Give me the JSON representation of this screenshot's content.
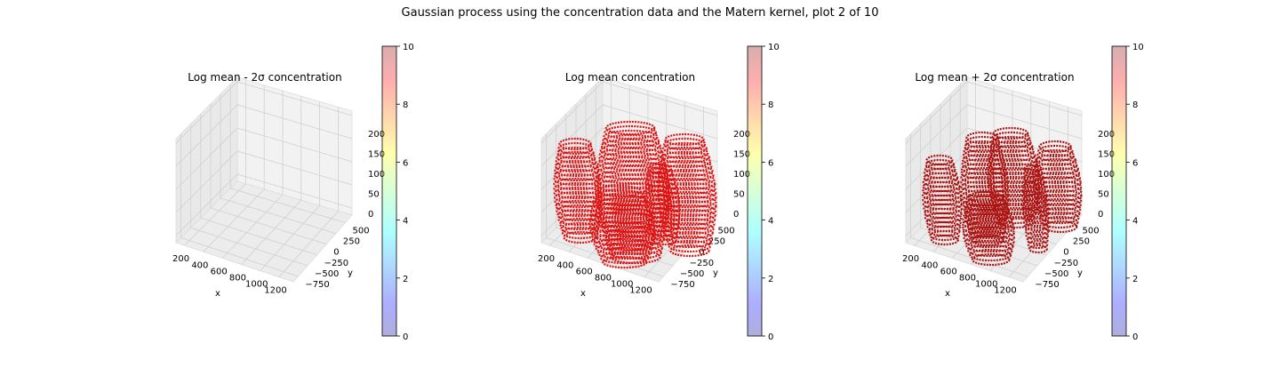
{
  "figure": {
    "suptitle": "Gaussian process using the  concentration data and the Matern kernel, plot 2 of 10"
  },
  "chart_data": [
    {
      "type": "scatter",
      "title": "Log mean - 2σ concentration",
      "xlabel": "x",
      "ylabel": "y",
      "zlabel": "",
      "x_ticks": [
        "200",
        "400",
        "600",
        "800",
        "1000",
        "1200"
      ],
      "y_ticks": [
        "−750",
        "−500",
        "−250",
        "0",
        "250",
        "500"
      ],
      "z_ticks": [
        "0",
        "50",
        "100",
        "150",
        "200"
      ],
      "xlim": [
        100,
        1250
      ],
      "ylim": [
        -850,
        650
      ],
      "zlim": [
        0,
        210
      ],
      "grid": true,
      "points_visible": false,
      "point_color": "",
      "colorbar": {
        "ticks": [
          "0",
          "2",
          "4",
          "6",
          "8",
          "10"
        ],
        "range": [
          0,
          10
        ],
        "cmap": "jet"
      }
    },
    {
      "type": "scatter",
      "title": "Log mean concentration",
      "xlabel": "x",
      "ylabel": "y",
      "zlabel": "",
      "x_ticks": [
        "200",
        "400",
        "600",
        "800",
        "1000",
        "1200"
      ],
      "y_ticks": [
        "−750",
        "−500",
        "−250",
        "0",
        "250",
        "500"
      ],
      "z_ticks": [
        "0",
        "50",
        "100",
        "150",
        "200"
      ],
      "xlim": [
        100,
        1250
      ],
      "ylim": [
        -850,
        650
      ],
      "zlim": [
        0,
        210
      ],
      "grid": true,
      "points_visible": true,
      "point_color": "#dd0000",
      "colorbar": {
        "ticks": [
          "0",
          "2",
          "4",
          "6",
          "8",
          "10"
        ],
        "range": [
          0,
          10
        ],
        "cmap": "jet"
      }
    },
    {
      "type": "scatter",
      "title": "Log mean + 2σ concentration",
      "xlabel": "x",
      "ylabel": "y",
      "zlabel": "",
      "x_ticks": [
        "200",
        "400",
        "600",
        "800",
        "1000",
        "1200"
      ],
      "y_ticks": [
        "−750",
        "−500",
        "−250",
        "0",
        "250",
        "500"
      ],
      "z_ticks": [
        "0",
        "50",
        "100",
        "150",
        "200"
      ],
      "xlim": [
        100,
        1250
      ],
      "ylim": [
        -850,
        650
      ],
      "zlim": [
        0,
        210
      ],
      "grid": true,
      "points_visible": true,
      "point_color": "#a80000",
      "colorbar": {
        "ticks": [
          "0",
          "2",
          "4",
          "6",
          "8",
          "10"
        ],
        "range": [
          0,
          10
        ],
        "cmap": "jet"
      }
    }
  ]
}
